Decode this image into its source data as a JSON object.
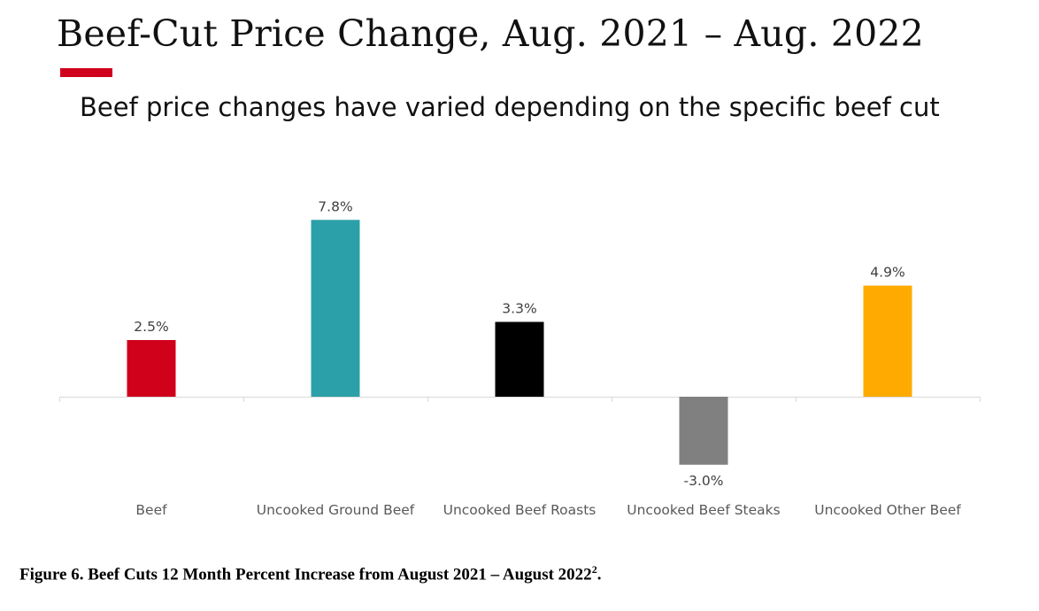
{
  "header": {
    "title": "Beef-Cut Price Change, Aug. 2021 – Aug. 2022",
    "subtitle": "Beef price changes have varied depending on the specific beef cut",
    "accent_color": "#d0021b"
  },
  "chart_data": {
    "type": "bar",
    "title": "Beef-Cut Price Change, Aug. 2021 – Aug. 2022",
    "xlabel": "",
    "ylabel": "",
    "ylim": [
      -3.5,
      9.5
    ],
    "grid": false,
    "legend": "none",
    "categories": [
      "Beef",
      "Uncooked Ground Beef",
      "Uncooked Beef Roasts",
      "Uncooked Beef Steaks",
      "Uncooked Other Beef"
    ],
    "values": [
      2.5,
      7.8,
      3.3,
      -3.0,
      4.9
    ],
    "data_labels": [
      "2.5%",
      "7.8%",
      "3.3%",
      "-3.0%",
      "4.9%"
    ],
    "colors": [
      "#d0021b",
      "#2ca0a8",
      "#000000",
      "#808080",
      "#ffaa00"
    ]
  },
  "footer": {
    "caption": "Figure 6. Beef Cuts 12 Month Percent Increase from August 2021 – August 2022",
    "caption_superscript": "2",
    "caption_end": "."
  }
}
